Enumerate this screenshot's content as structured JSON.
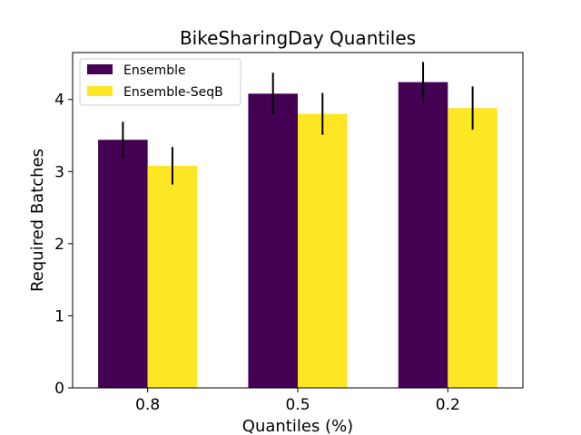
{
  "chart_data": {
    "type": "bar",
    "title": "BikeSharingDay Quantiles",
    "xlabel": "Quantiles (%)",
    "ylabel": "Required Batches",
    "categories": [
      "0.8",
      "0.5",
      "0.2"
    ],
    "ylim": [
      0,
      4.65
    ],
    "yticks": [
      "0",
      "1",
      "2",
      "3",
      "4"
    ],
    "grid": false,
    "legend_position": "top-left",
    "series": [
      {
        "name": "Ensemble",
        "color": "#440154",
        "values": [
          3.44,
          4.08,
          4.24
        ],
        "errors": [
          0.25,
          0.29,
          0.28
        ]
      },
      {
        "name": "Ensemble-SeqB",
        "color": "#fde725",
        "values": [
          3.08,
          3.8,
          3.88
        ],
        "errors": [
          0.26,
          0.29,
          0.3
        ]
      }
    ]
  }
}
